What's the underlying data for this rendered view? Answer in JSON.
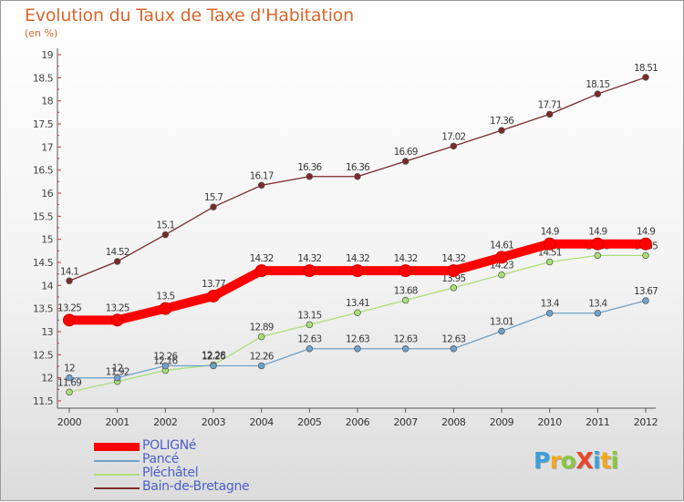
{
  "title": "Evolution du Taux de Taxe d'Habitation",
  "subtitle": "(en %)",
  "logo": {
    "text": "ProXiti",
    "letters": [
      {
        "ch": "P",
        "color": "#3aa0dc"
      },
      {
        "ch": "r",
        "color": "#f2a81d"
      },
      {
        "ch": "o",
        "color": "#8cc63f"
      },
      {
        "ch": "X",
        "color": "#e8472b"
      },
      {
        "ch": "i",
        "color": "#3aa0dc"
      },
      {
        "ch": "t",
        "color": "#f2a81d"
      },
      {
        "ch": "i",
        "color": "#8cc63f"
      }
    ]
  },
  "chart_data": {
    "type": "line",
    "title": "Evolution du Taux de Taxe d'Habitation",
    "ylabel": "(en %)",
    "xlabel": "",
    "ylim": [
      11.5,
      19
    ],
    "yticks": [
      "11.5",
      "12",
      "12.5",
      "13",
      "13.5",
      "14",
      "14.5",
      "15",
      "15.5",
      "16",
      "16.5",
      "17",
      "17.5",
      "18",
      "18.5",
      "19"
    ],
    "x": [
      "2000",
      "2001",
      "2002",
      "2003",
      "2004",
      "2005",
      "2006",
      "2007",
      "2008",
      "2009",
      "2010",
      "2011",
      "2012"
    ],
    "grid": false,
    "legend_position": "bottom-left",
    "series": [
      {
        "name": "Bain-de-Bretagne",
        "color": "#7a2a2a",
        "values": [
          14.1,
          14.52,
          15.1,
          15.7,
          16.17,
          16.36,
          16.36,
          16.69,
          17.02,
          17.36,
          17.71,
          18.15,
          18.51
        ],
        "labels": [
          "14.1",
          "14.52",
          "15.1",
          "15.7",
          "16.17",
          "16.36",
          "16.36",
          "16.69",
          "17.02",
          "17.36",
          "17.71",
          "18.15",
          "18.51"
        ]
      },
      {
        "name": "Pléchâtel",
        "color": "#a9df79",
        "values": [
          11.69,
          11.92,
          12.16,
          12.28,
          12.89,
          13.15,
          13.41,
          13.68,
          13.95,
          14.23,
          14.51,
          14.65,
          14.65
        ],
        "labels": [
          "11.69",
          "11.92",
          "12.16",
          "12.28",
          "12.89",
          "13.15",
          "13.41",
          "13.68",
          "13.95",
          "14.23",
          "14.51",
          "14.65",
          "14.65"
        ]
      },
      {
        "name": "Pancé",
        "color": "#6fa2c9",
        "values": [
          12,
          12,
          12.26,
          12.26,
          12.26,
          12.63,
          12.63,
          12.63,
          12.63,
          13.01,
          13.4,
          13.4,
          13.67
        ],
        "labels": [
          "12",
          "12",
          "12.26",
          "12.26",
          "12.26",
          "12.63",
          "12.63",
          "12.63",
          "12.63",
          "13.01",
          "13.4",
          "13.4",
          "13.67"
        ]
      },
      {
        "name": "POLIGNé",
        "color": "#ff0000",
        "values": [
          13.25,
          13.25,
          13.5,
          13.77,
          14.32,
          14.32,
          14.32,
          14.32,
          14.32,
          14.61,
          14.9,
          14.9,
          14.9
        ],
        "labels": [
          "13.25",
          "13.25",
          "13.5",
          "13.77",
          "14.32",
          "14.32",
          "14.32",
          "14.32",
          "14.32",
          "14.61",
          "14.9",
          "14.9",
          "14.9"
        ]
      }
    ],
    "legend": [
      {
        "name": "POLIGNé",
        "color": "#ff0000"
      },
      {
        "name": "Pancé",
        "color": "#6fa2c9"
      },
      {
        "name": "Pléchâtel",
        "color": "#a9df79"
      },
      {
        "name": "Bain-de-Bretagne",
        "color": "#7a2a2a"
      }
    ]
  }
}
